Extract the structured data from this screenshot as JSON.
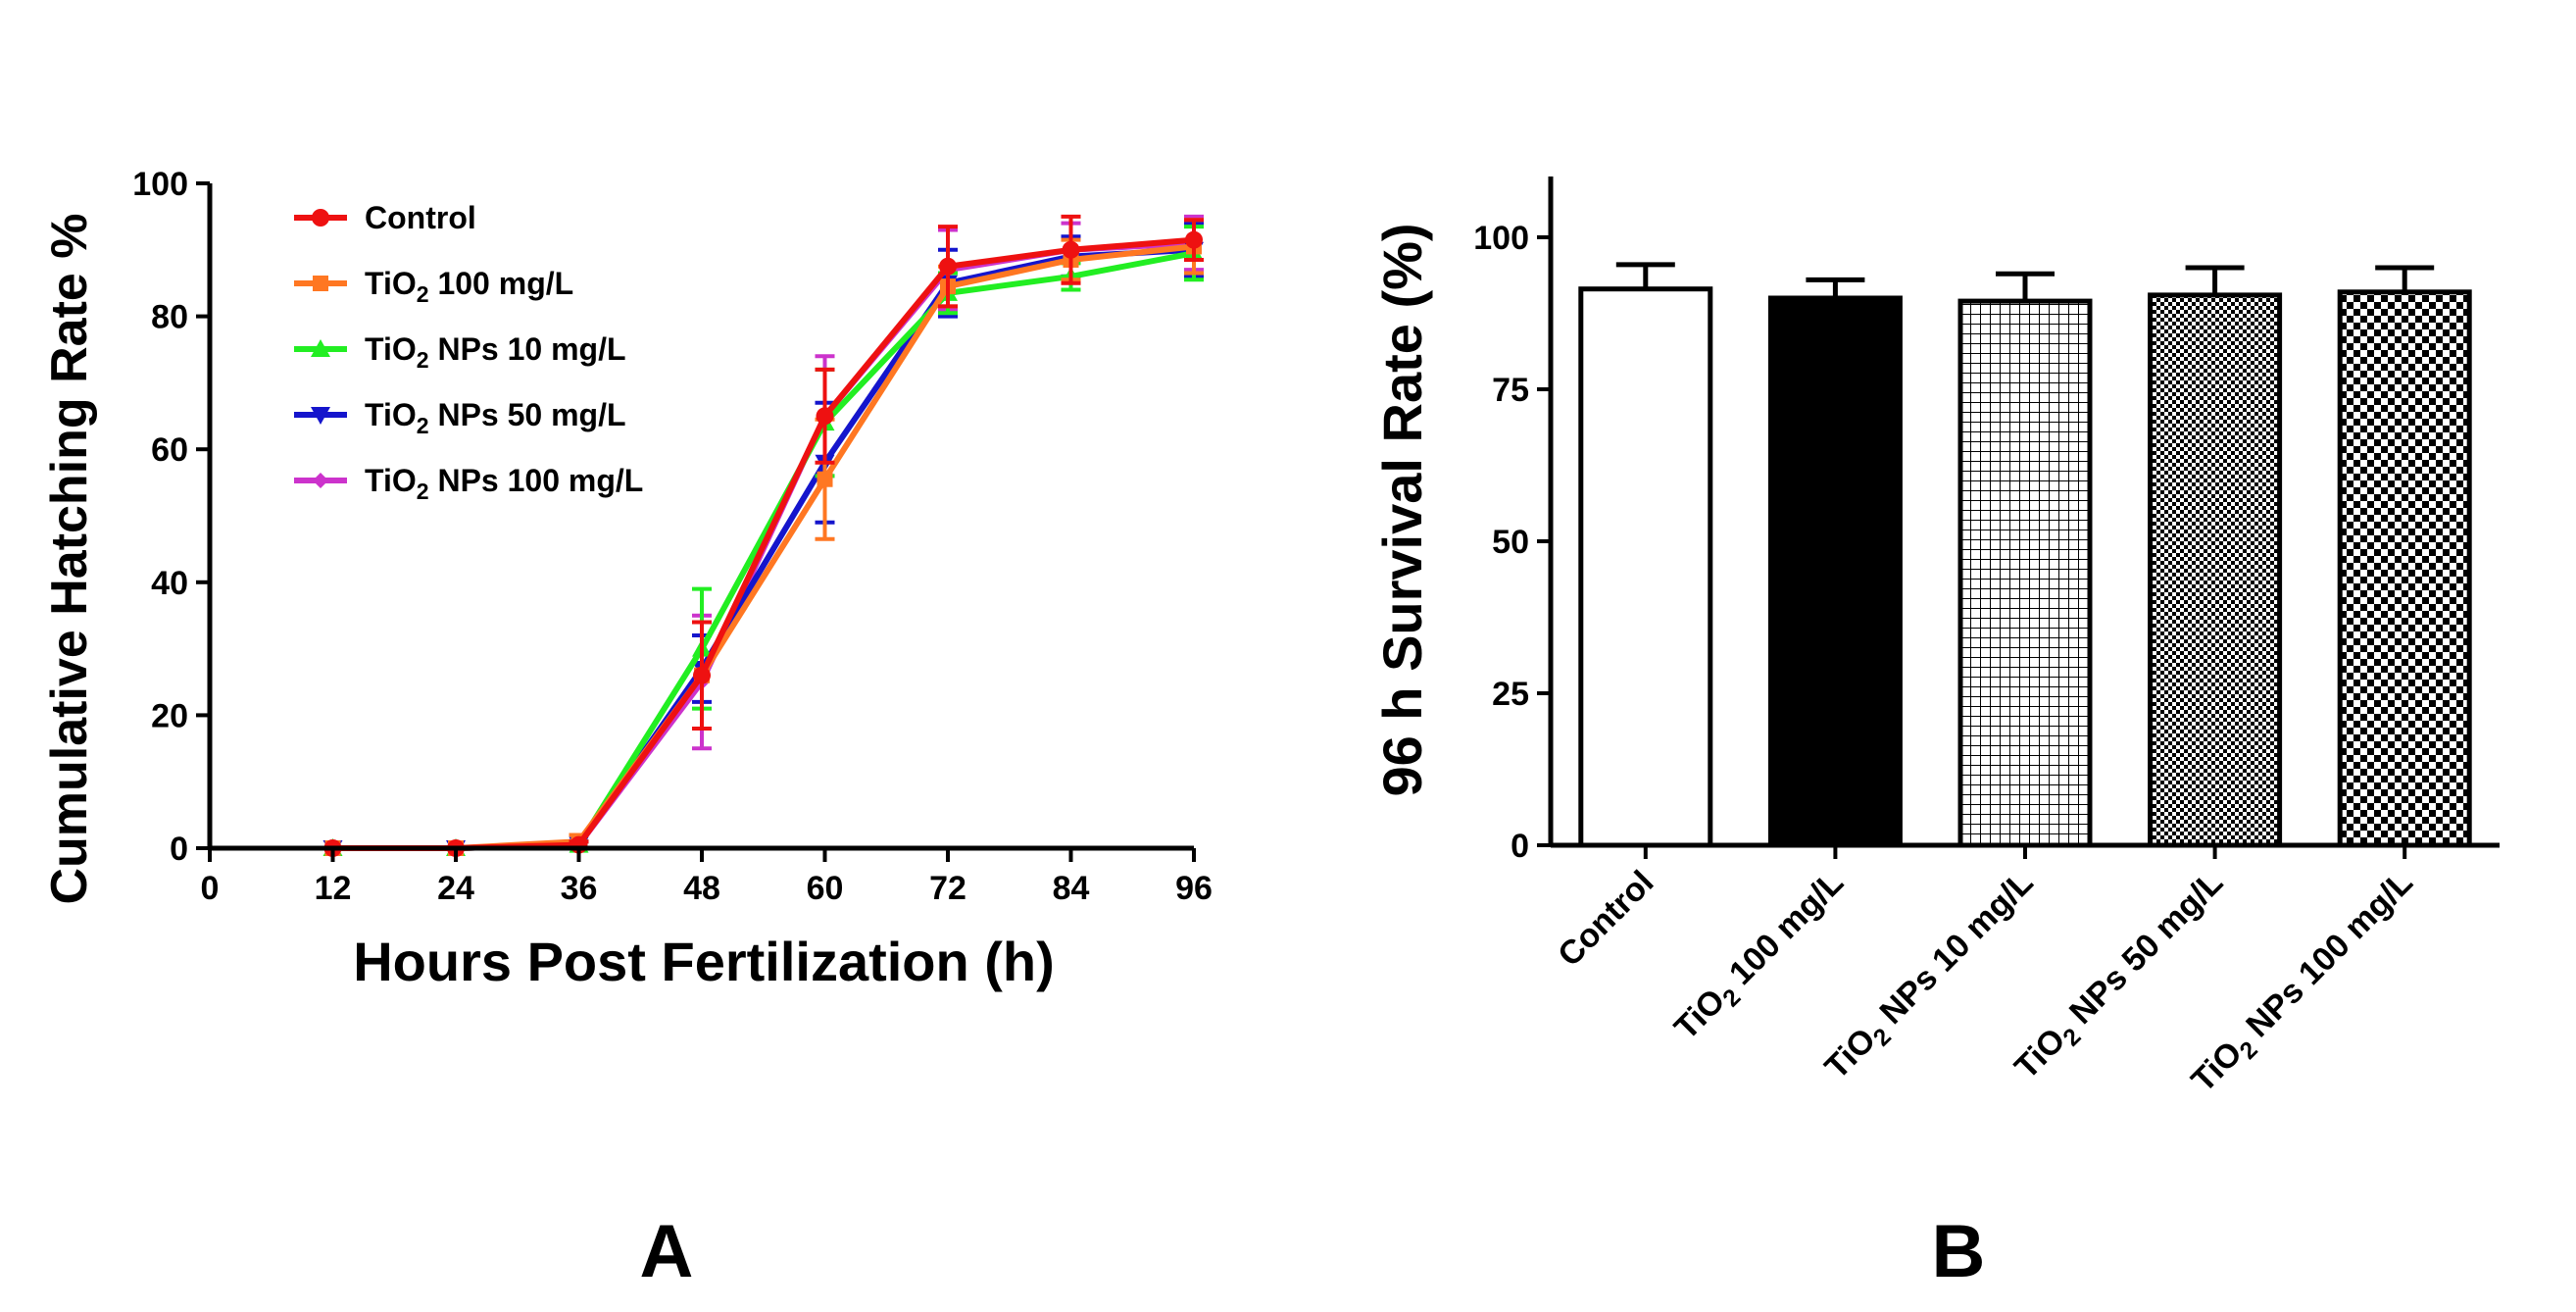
{
  "chart_data": [
    {
      "panel": "A",
      "type": "line",
      "xlabel": "Hours Post Fertilization (h)",
      "ylabel": "Cumulative Hatching Rate %",
      "xlim": [
        0,
        96
      ],
      "ylim": [
        0,
        100
      ],
      "xticks": [
        0,
        12,
        24,
        36,
        48,
        60,
        72,
        84,
        96
      ],
      "yticks": [
        0,
        20,
        40,
        60,
        80,
        100
      ],
      "grid": false,
      "legend_position": "top-left",
      "x": [
        12,
        24,
        36,
        48,
        60,
        72,
        84,
        96
      ],
      "series": [
        {
          "name": "TiO₂ NPs 100 mg/L",
          "label_base": "TiO",
          "label_sub": "2",
          "label_rest": " NPs 100 mg/L",
          "color": "#cc33cc",
          "marker": "diamond",
          "values": [
            0,
            0,
            0.5,
            25,
            65,
            87,
            90,
            91
          ],
          "errors": [
            0,
            0,
            0.5,
            10,
            9,
            6,
            4,
            4
          ]
        },
        {
          "name": "TiO₂ NPs 50 mg/L",
          "label_base": "TiO",
          "label_sub": "2",
          "label_rest": " NPs 50 mg/L",
          "color": "#1515cc",
          "marker": "triangle-down",
          "values": [
            0,
            0,
            0.5,
            27,
            58,
            85,
            89,
            90
          ],
          "errors": [
            0,
            0,
            0.5,
            5,
            9,
            5,
            3,
            4
          ]
        },
        {
          "name": "TiO₂ NPs 10 mg/L",
          "label_base": "TiO",
          "label_sub": "2",
          "label_rest": " NPs 10 mg/L",
          "color": "#22ee22",
          "marker": "triangle-up",
          "values": [
            0,
            0,
            0.5,
            30,
            64,
            83.5,
            86,
            89.5
          ],
          "errors": [
            0,
            0,
            0.5,
            9,
            8,
            3,
            2,
            4
          ]
        },
        {
          "name": "TiO₂ 100 mg/L",
          "label_base": "TiO",
          "label_sub": "2",
          "label_rest": " 100 mg/L",
          "color": "#ff7722",
          "marker": "square",
          "values": [
            0,
            0,
            1,
            26,
            55.5,
            84.5,
            88.5,
            90.5
          ],
          "errors": [
            0,
            0,
            1,
            8,
            9,
            3,
            3,
            4
          ]
        },
        {
          "name": "Control",
          "label_base": "Control",
          "label_sub": "",
          "label_rest": "",
          "color": "#ee1111",
          "marker": "circle",
          "values": [
            0,
            0,
            0.5,
            26,
            65,
            87.5,
            90,
            91.5
          ],
          "errors": [
            0,
            0,
            0.5,
            8,
            7,
            6,
            5,
            3
          ]
        }
      ],
      "legend_order": [
        "Control",
        "TiO₂ 100 mg/L",
        "TiO₂ NPs 10 mg/L",
        "TiO₂ NPs 50 mg/L",
        "TiO₂ NPs 100 mg/L"
      ]
    },
    {
      "panel": "B",
      "type": "bar",
      "ylabel": "96 h Survival Rate (%)",
      "xlabel": "",
      "ylim": [
        0,
        110
      ],
      "yticks": [
        0,
        25,
        50,
        75,
        100
      ],
      "grid": false,
      "categories": [
        {
          "base": "Control",
          "sub": "",
          "rest": ""
        },
        {
          "base": "TiO",
          "sub": "2",
          "rest": " 100 mg/L"
        },
        {
          "base": "TiO",
          "sub": "2",
          "rest": " NPs 10 mg/L"
        },
        {
          "base": "TiO",
          "sub": "2",
          "rest": " NPs 50 mg/L"
        },
        {
          "base": "TiO",
          "sub": "2",
          "rest": " NPs 100 mg/L"
        }
      ],
      "values": [
        91.5,
        90,
        89.5,
        90.5,
        91
      ],
      "errors": [
        4,
        3,
        4.5,
        4.5,
        4
      ],
      "fills": [
        "white",
        "black",
        "grid",
        "fine-check",
        "check"
      ]
    }
  ],
  "panel_labels": {
    "a": "A",
    "b": "B"
  }
}
